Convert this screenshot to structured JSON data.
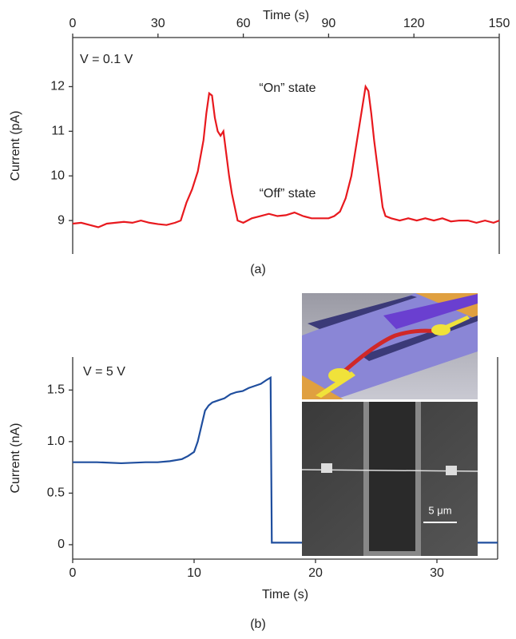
{
  "chart_data": [
    {
      "type": "line",
      "panel_label": "(a)",
      "xlabel": "Time (s)",
      "ylabel": "Current (pA)",
      "color": "#e8191e",
      "annotations": [
        "V = 0.1 V",
        "“On”  state",
        "“Off”  state"
      ],
      "xlim": [
        0,
        150
      ],
      "xticks": [
        0,
        30,
        60,
        90,
        120,
        150
      ],
      "ylim": [
        8.25,
        13.1
      ],
      "yticks": [
        9,
        10,
        11,
        12
      ],
      "x": [
        0,
        3,
        6,
        9,
        12,
        15,
        18,
        21,
        24,
        27,
        30,
        33,
        36,
        38,
        40,
        42,
        44,
        46,
        47,
        48,
        49,
        50,
        51,
        52,
        53,
        54,
        55,
        56,
        57,
        58,
        60,
        63,
        66,
        69,
        72,
        75,
        78,
        81,
        84,
        87,
        90,
        92,
        94,
        96,
        98,
        100,
        102,
        103,
        104,
        105,
        106,
        107,
        108,
        109,
        110,
        112,
        115,
        118,
        121,
        124,
        127,
        130,
        133,
        136,
        139,
        142,
        145,
        148,
        150
      ],
      "values": [
        8.93,
        8.95,
        8.9,
        8.85,
        8.93,
        8.95,
        8.97,
        8.95,
        9.0,
        8.95,
        8.92,
        8.9,
        8.95,
        9.0,
        9.4,
        9.7,
        10.1,
        10.8,
        11.4,
        11.85,
        11.8,
        11.3,
        11.0,
        10.9,
        11.0,
        10.5,
        10.0,
        9.6,
        9.3,
        9.0,
        8.95,
        9.05,
        9.1,
        9.15,
        9.1,
        9.12,
        9.18,
        9.1,
        9.05,
        9.05,
        9.05,
        9.1,
        9.2,
        9.5,
        10.0,
        10.8,
        11.6,
        12.0,
        11.9,
        11.4,
        10.8,
        10.3,
        9.8,
        9.3,
        9.1,
        9.05,
        9.0,
        9.05,
        9.0,
        9.05,
        9.0,
        9.05,
        8.98,
        9.0,
        9.0,
        8.95,
        9.0,
        8.95,
        9.0
      ]
    },
    {
      "type": "line",
      "panel_label": "(b)",
      "xlabel": "Time (s)",
      "ylabel": "Current (nA)",
      "color": "#1f4e9e",
      "annotations": [
        "V = 5 V"
      ],
      "scale_bar_label": "5 μm",
      "xlim": [
        0,
        35
      ],
      "xticks": [
        0,
        10,
        20,
        30
      ],
      "ylim": [
        -0.14,
        1.82
      ],
      "yticks": [
        0,
        0.5,
        {
          "value": 1,
          "label": "1.0"
        },
        1.5
      ],
      "x": [
        0,
        2,
        4,
        6,
        7,
        8,
        9,
        9.5,
        10,
        10.3,
        10.6,
        10.9,
        11.2,
        11.5,
        12,
        12.5,
        13,
        13.5,
        14,
        14.5,
        15,
        15.5,
        16,
        16.3,
        16.4,
        18,
        20,
        22,
        25,
        28,
        30,
        35
      ],
      "values": [
        0.8,
        0.8,
        0.79,
        0.8,
        0.8,
        0.81,
        0.83,
        0.86,
        0.9,
        1.0,
        1.15,
        1.3,
        1.35,
        1.38,
        1.4,
        1.42,
        1.46,
        1.48,
        1.49,
        1.52,
        1.54,
        1.56,
        1.6,
        1.62,
        0.02,
        0.02,
        0.02,
        0.025,
        0.02,
        0.02,
        0.02,
        0.02
      ]
    }
  ]
}
